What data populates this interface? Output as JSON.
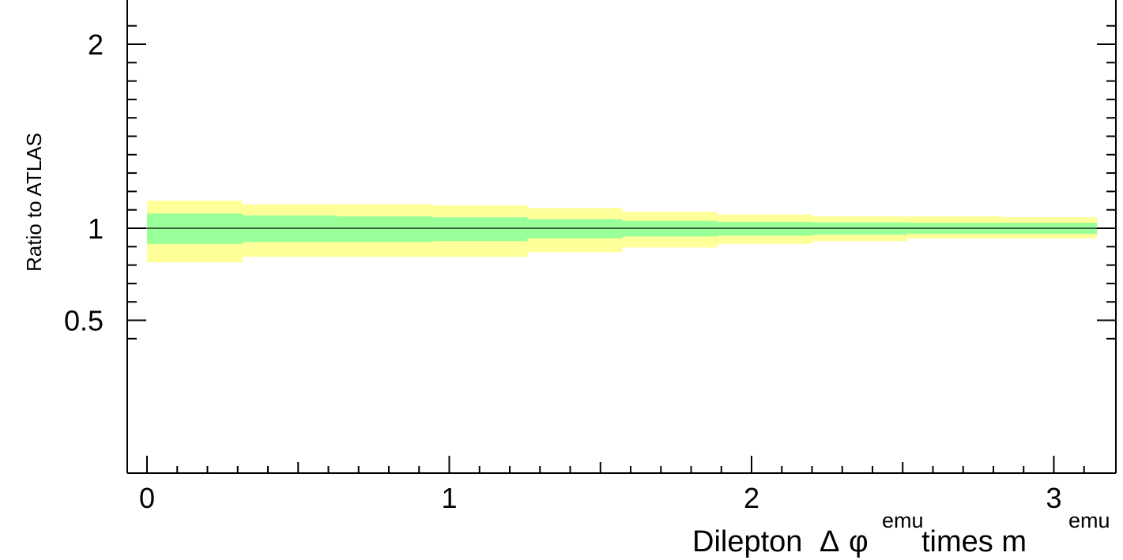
{
  "chart_data": {
    "type": "area",
    "title": "",
    "ylabel": "Ratio to ATLAS",
    "xlabel": {
      "prefix": "Dilepton",
      "delta": "Δ",
      "phi": "φ",
      "sup1": "emu",
      "middle": "times m",
      "sup2": "emu"
    },
    "xlim": [
      -0.06,
      3.2
    ],
    "ylim": [
      0.34,
      2.19
    ],
    "x_ticks": [
      {
        "value": 0,
        "label": "0"
      },
      {
        "value": 1,
        "label": "1"
      },
      {
        "value": 2,
        "label": "2"
      },
      {
        "value": 3,
        "label": "3"
      }
    ],
    "y_ticks": [
      {
        "value": 0.5,
        "label": "0.5"
      },
      {
        "value": 1,
        "label": "1"
      },
      {
        "value": 2,
        "label": "2"
      }
    ],
    "reference_line": 1,
    "bin_edges": [
      0,
      0.314,
      0.628,
      0.942,
      1.257,
      1.571,
      1.885,
      2.199,
      2.513,
      2.827,
      3.142
    ],
    "series": [
      {
        "color": "#ffff99",
        "low": [
          0.815,
          0.845,
          0.845,
          0.845,
          0.87,
          0.895,
          0.915,
          0.93,
          0.945,
          0.945
        ],
        "high": [
          1.15,
          1.13,
          1.13,
          1.125,
          1.11,
          1.09,
          1.075,
          1.065,
          1.065,
          1.06
        ]
      },
      {
        "color": "#99ff99",
        "low": [
          0.915,
          0.925,
          0.925,
          0.93,
          0.945,
          0.955,
          0.96,
          0.965,
          0.97,
          0.97
        ],
        "high": [
          1.08,
          1.07,
          1.065,
          1.06,
          1.05,
          1.04,
          1.035,
          1.032,
          1.03,
          1.03
        ]
      }
    ]
  }
}
